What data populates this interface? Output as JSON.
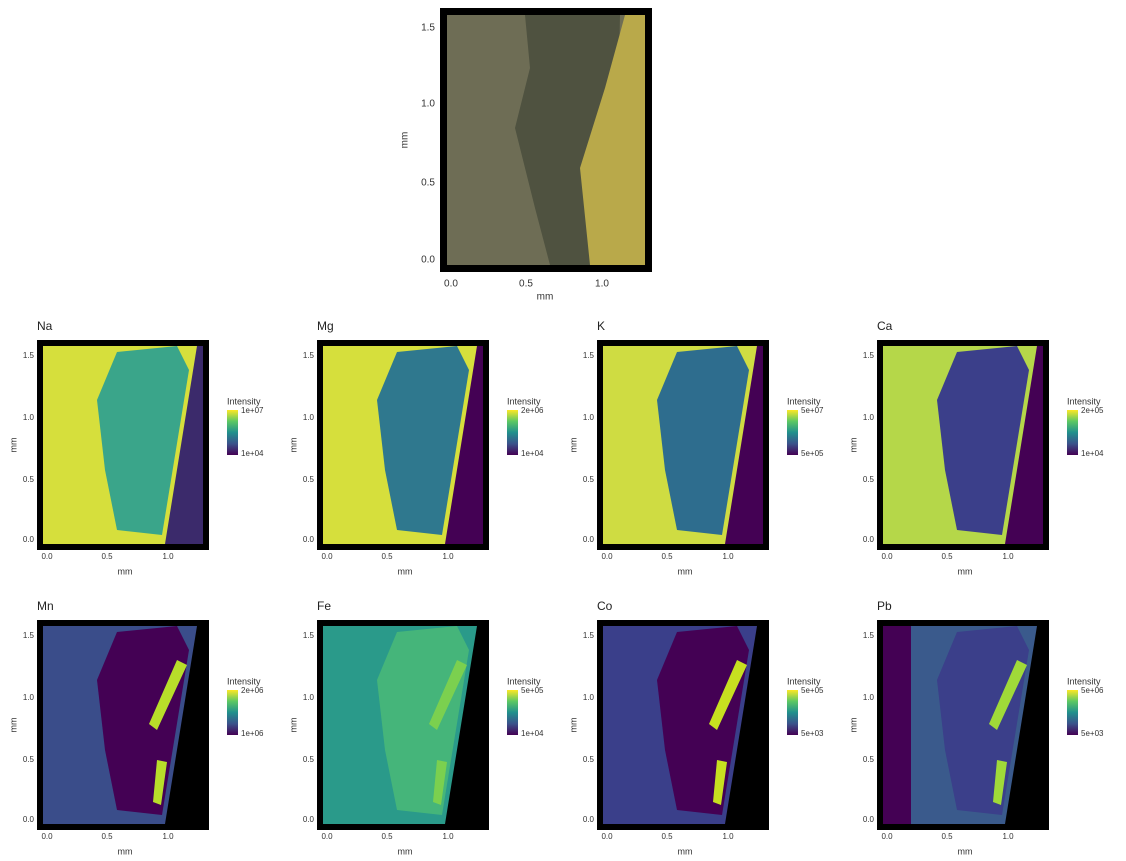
{
  "top_panel": {
    "x_ticks": [
      "0.0",
      "0.5",
      "1.0"
    ],
    "y_ticks": [
      "0.0",
      "0.5",
      "1.0",
      "1.5"
    ],
    "x_label": "mm",
    "y_label": "mm"
  },
  "panels": [
    {
      "title": "Na",
      "legend_title": "Intensity",
      "legend_max": "1e+07",
      "legend_min": "1e+04",
      "x_ticks": [
        "0.0",
        "0.5",
        "1.0"
      ],
      "y_ticks": [
        "0.0",
        "0.5",
        "1.0",
        "1.5"
      ],
      "x_label": "mm",
      "y_label": "mm"
    },
    {
      "title": "Mg",
      "legend_title": "Intensity",
      "legend_max": "2e+06",
      "legend_min": "1e+04",
      "x_ticks": [
        "0.0",
        "0.5",
        "1.0"
      ],
      "y_ticks": [
        "0.0",
        "0.5",
        "1.0",
        "1.5"
      ],
      "x_label": "mm",
      "y_label": "mm"
    },
    {
      "title": "K",
      "legend_title": "Intensity",
      "legend_max": "5e+07",
      "legend_min": "5e+05",
      "x_ticks": [
        "0.0",
        "0.5",
        "1.0"
      ],
      "y_ticks": [
        "0.0",
        "0.5",
        "1.0",
        "1.5"
      ],
      "x_label": "mm",
      "y_label": "mm"
    },
    {
      "title": "Ca",
      "legend_title": "Intensity",
      "legend_max": "2e+05",
      "legend_min": "1e+04",
      "x_ticks": [
        "0.0",
        "0.5",
        "1.0"
      ],
      "y_ticks": [
        "0.0",
        "0.5",
        "1.0",
        "1.5"
      ],
      "x_label": "mm",
      "y_label": "mm"
    },
    {
      "title": "Mn",
      "legend_title": "Intensity",
      "legend_max": "2e+06",
      "legend_min": "1e+06",
      "x_ticks": [
        "0.0",
        "0.5",
        "1.0"
      ],
      "y_ticks": [
        "0.0",
        "0.5",
        "1.0",
        "1.5"
      ],
      "x_label": "mm",
      "y_label": "mm"
    },
    {
      "title": "Fe",
      "legend_title": "Intensity",
      "legend_max": "5e+05",
      "legend_min": "1e+04",
      "x_ticks": [
        "0.0",
        "0.5",
        "1.0"
      ],
      "y_ticks": [
        "0.0",
        "0.5",
        "1.0",
        "1.5"
      ],
      "x_label": "mm",
      "y_label": "mm"
    },
    {
      "title": "Co",
      "legend_title": "Intensity",
      "legend_max": "5e+05",
      "legend_min": "5e+03",
      "x_ticks": [
        "0.0",
        "0.5",
        "1.0"
      ],
      "y_ticks": [
        "0.0",
        "0.5",
        "1.0",
        "1.5"
      ],
      "x_label": "mm",
      "y_label": "mm"
    },
    {
      "title": "Pb",
      "legend_title": "Intensity",
      "legend_max": "5e+06",
      "legend_min": "5e+03",
      "x_ticks": [
        "0.0",
        "0.5",
        "1.0"
      ],
      "y_ticks": [
        "0.0",
        "0.5",
        "1.0",
        "1.5"
      ],
      "x_label": "mm",
      "y_label": "mm"
    }
  ]
}
